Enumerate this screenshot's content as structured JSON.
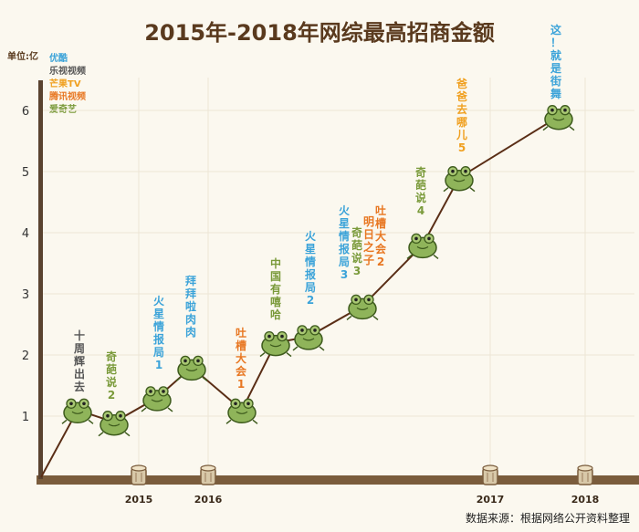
{
  "colors": {
    "优酷": "#3ba3d9",
    "乐视视频": "#555555",
    "芒果TV": "#f0a020",
    "腾讯视频": "#e87722",
    "爱奇艺": "#7a9a3a",
    "axis": "#5a4330",
    "line": "#5a2e16",
    "ground": "#7a5c3c"
  },
  "chart_data": {
    "type": "line",
    "title": "2015年-2018年网综最高招商金额",
    "ylabel": "单位:亿",
    "ylim": [
      0,
      6.6
    ],
    "yticks": [
      1,
      2,
      3,
      4,
      5,
      6
    ],
    "xticks": [
      "2015",
      "2016",
      "2017",
      "2018"
    ],
    "legend": [
      "优酷",
      "乐视视频",
      "芒果TV",
      "腾讯视频",
      "爱奇艺"
    ],
    "grid": true,
    "legend_position": "top-left",
    "source": "数据来源：根据网络公开资料整理",
    "points": [
      {
        "label": "",
        "value": 0,
        "platform": ""
      },
      {
        "label": "十周辉出去",
        "value": 1.1,
        "platform": "乐视视频"
      },
      {
        "label": "奇葩说2",
        "value": 0.9,
        "platform": "爱奇艺"
      },
      {
        "label": "火星情报局1",
        "value": 1.3,
        "platform": "优酷"
      },
      {
        "label": "拜拜啦肉肉",
        "value": 1.8,
        "platform": "优酷"
      },
      {
        "label": "吐槽大会1",
        "value": 1.1,
        "platform": "腾讯视频"
      },
      {
        "label": "中国有嘻哈",
        "value": 2.2,
        "platform": "爱奇艺"
      },
      {
        "label": "火星情报局2",
        "value": 2.3,
        "platform": "优酷"
      },
      {
        "label": "火星情报局3",
        "value": 2.8,
        "platform": "优酷"
      },
      {
        "label": "奇葩说3",
        "value": 2.8,
        "platform": "爱奇艺"
      },
      {
        "label": "明日之子",
        "value": 2.8,
        "platform": "腾讯视频"
      },
      {
        "label": "吐槽大会2",
        "value": 2.8,
        "platform": "腾讯视频"
      },
      {
        "label": "奇葩说4",
        "value": 3.8,
        "platform": "爱奇艺"
      },
      {
        "label": "爸爸去哪儿5",
        "value": 4.9,
        "platform": "芒果TV"
      },
      {
        "label": "这！就是街舞",
        "value": 5.9,
        "platform": "优酷"
      }
    ]
  }
}
